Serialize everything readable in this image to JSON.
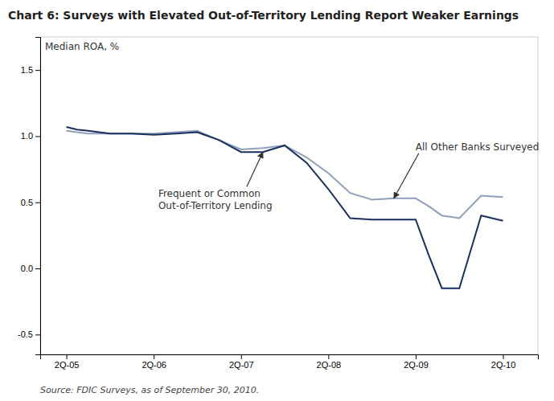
{
  "chart_data": {
    "type": "line",
    "title": "Chart 6: Surveys with Elevated Out-of-Territory Lending Report Weaker Earnings",
    "ylabel": "Median ROA, %",
    "source": "Source: FDIC Surveys, as of September 30, 2010.",
    "x": [
      0,
      0.12,
      0.25,
      0.5,
      0.75,
      1.0,
      1.25,
      1.5,
      1.75,
      2.0,
      2.25,
      2.5,
      2.75,
      3.0,
      3.25,
      3.5,
      3.75,
      4.0,
      4.15,
      4.3,
      4.5,
      4.75,
      5.0
    ],
    "series": [
      {
        "name": "All Other Banks Surveyed",
        "color": "#8f9fbc",
        "values": [
          1.04,
          1.03,
          1.02,
          1.02,
          1.02,
          1.02,
          1.03,
          1.04,
          0.97,
          0.9,
          0.91,
          0.93,
          0.84,
          0.72,
          0.57,
          0.52,
          0.53,
          0.53,
          0.47,
          0.4,
          0.38,
          0.55,
          0.54
        ]
      },
      {
        "name": "Frequent or Common\nOut-of-Territory Lending",
        "color": "#1a2f5e",
        "values": [
          1.07,
          1.05,
          1.04,
          1.02,
          1.02,
          1.01,
          1.02,
          1.03,
          0.97,
          0.88,
          0.88,
          0.93,
          0.8,
          0.6,
          0.38,
          0.37,
          0.37,
          0.37,
          0.1,
          -0.15,
          -0.15,
          0.4,
          0.36
        ]
      }
    ],
    "xlim": [
      -0.3,
      5.4
    ],
    "xticks": [
      {
        "value": 0,
        "label": "2Q-05"
      },
      {
        "value": 1,
        "label": "2Q-06"
      },
      {
        "value": 2,
        "label": "2Q-07"
      },
      {
        "value": 3,
        "label": "2Q-08"
      },
      {
        "value": 4,
        "label": "2Q-09"
      },
      {
        "value": 5,
        "label": "2Q-10"
      }
    ],
    "ylim": [
      -0.65,
      1.75
    ],
    "yticks": [
      -0.5,
      {
        "value": 0,
        "label": "0.0"
      },
      0.5,
      {
        "value": 1,
        "label": "1.0"
      },
      1.5
    ],
    "grid": false,
    "legend": false
  }
}
